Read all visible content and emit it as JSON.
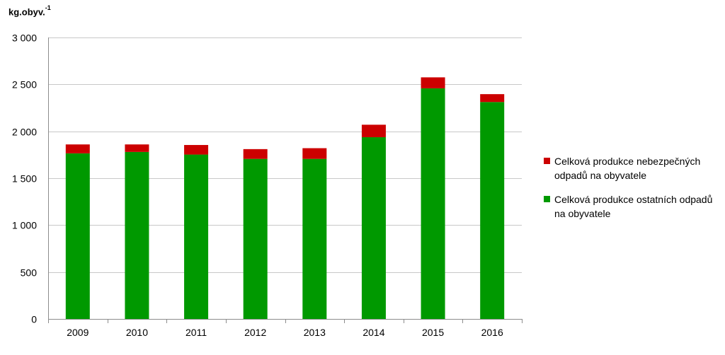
{
  "chart_data": {
    "type": "bar",
    "stacked": true,
    "unit_label": "kg.obyv.",
    "unit_superscript": "-1",
    "categories": [
      "2009",
      "2010",
      "2011",
      "2012",
      "2013",
      "2014",
      "2015",
      "2016"
    ],
    "series": [
      {
        "name": "Celková produkce ostatních odpadů na obyvatele",
        "color": "#009900",
        "values": [
          1765,
          1780,
          1752,
          1706,
          1706,
          1937,
          2458,
          2312
        ]
      },
      {
        "name": "Celková produkce nebezpečných odpadů na obyvatele",
        "color": "#cc0000",
        "values": [
          95,
          80,
          102,
          104,
          114,
          133,
          117,
          84
        ]
      }
    ],
    "ylim": [
      0,
      3000
    ],
    "y_ticks": [
      0,
      500,
      1000,
      1500,
      2000,
      2500,
      3000
    ],
    "y_tick_labels": [
      "0",
      "500",
      "1 000",
      "1 500",
      "2 000",
      "2 500",
      "3 000"
    ],
    "grid": true,
    "legend_position": "right"
  }
}
